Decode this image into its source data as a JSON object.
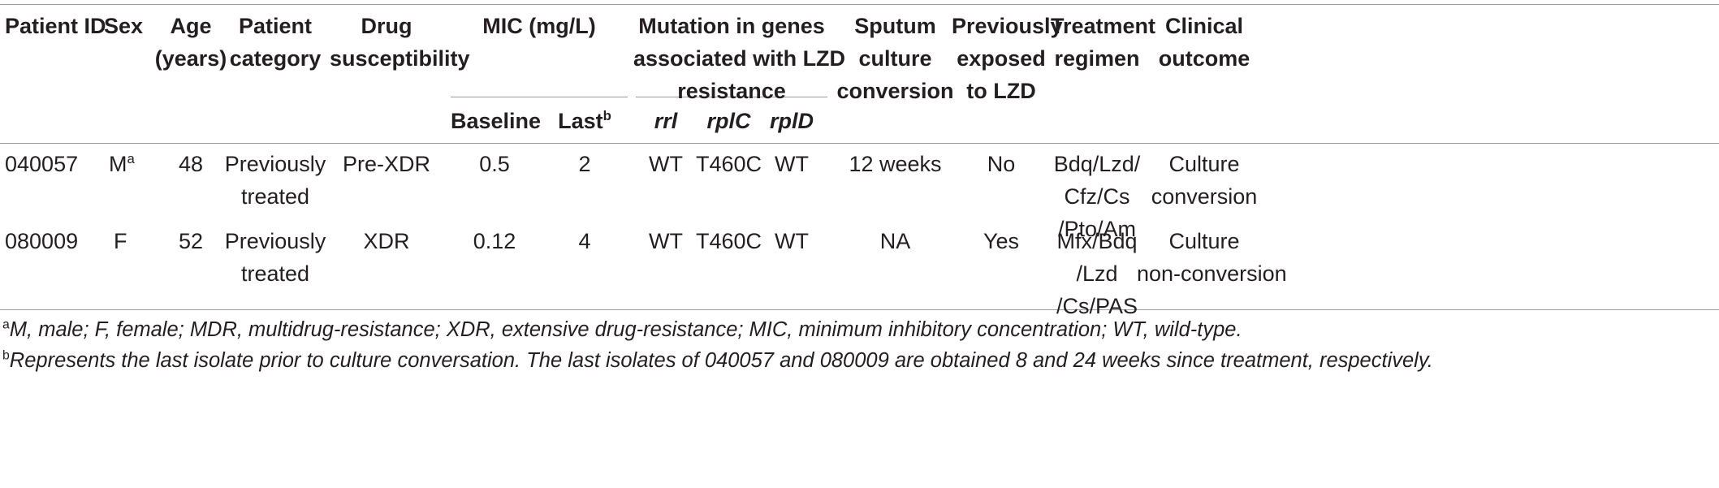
{
  "headers": {
    "patient_id": "Patient ID",
    "sex": "Sex",
    "age": [
      "Age",
      "(years)"
    ],
    "patient_category": [
      "Patient",
      "category"
    ],
    "drug_susceptibility": [
      "Drug",
      "susceptibility"
    ],
    "mic": "MIC (mg/L)",
    "mic_baseline": "Baseline",
    "mic_last": "Last",
    "mic_last_sup": "b",
    "mutation": [
      "Mutation in genes",
      "associated with LZD",
      "resistance"
    ],
    "gene_rrl": "rrl",
    "gene_rplC": "rplC",
    "gene_rplD": "rplD",
    "sputum": [
      "Sputum",
      "culture",
      "conversion"
    ],
    "previously_exposed": [
      "Previously",
      "exposed",
      "to LZD"
    ],
    "treatment": [
      "Treatment",
      "regimen"
    ],
    "clinical": [
      "Clinical",
      "outcome"
    ]
  },
  "rows": [
    {
      "patient_id": "040057",
      "sex": "M",
      "sex_sup": "a",
      "age": "48",
      "category": [
        "Previously",
        "treated"
      ],
      "drug_susceptibility": "Pre-XDR",
      "mic_baseline": "0.5",
      "mic_last": "2",
      "rrl": "WT",
      "rplC": "T460C",
      "rplD": "WT",
      "sputum": "12 weeks",
      "previously_exposed": "No",
      "treatment": [
        "Bdq/Lzd/",
        "Cfz/Cs",
        "/Pto/Am"
      ],
      "clinical": [
        "Culture",
        "conversion"
      ]
    },
    {
      "patient_id": "080009",
      "sex": "F",
      "sex_sup": "",
      "age": "52",
      "category": [
        "Previously",
        "treated"
      ],
      "drug_susceptibility": "XDR",
      "mic_baseline": "0.12",
      "mic_last": "4",
      "rrl": "WT",
      "rplC": "T460C",
      "rplD": "WT",
      "sputum": "NA",
      "previously_exposed": "Yes",
      "treatment": [
        "Mfx/Bdq",
        "/Lzd",
        "/Cs/PAS"
      ],
      "clinical": [
        "Culture",
        "non-conversion"
      ]
    }
  ],
  "footnotes": {
    "a_mark": "a",
    "a_text": "M, male; F, female; MDR, multidrug-resistance; XDR, extensive drug-resistance; MIC, minimum inhibitory concentration; WT, wild-type.",
    "b_mark": "b",
    "b_text": "Represents the last isolate prior to culture conversation. The last isolates of 040057 and 080009 are obtained 8 and 24 weeks since treatment, respectively."
  }
}
